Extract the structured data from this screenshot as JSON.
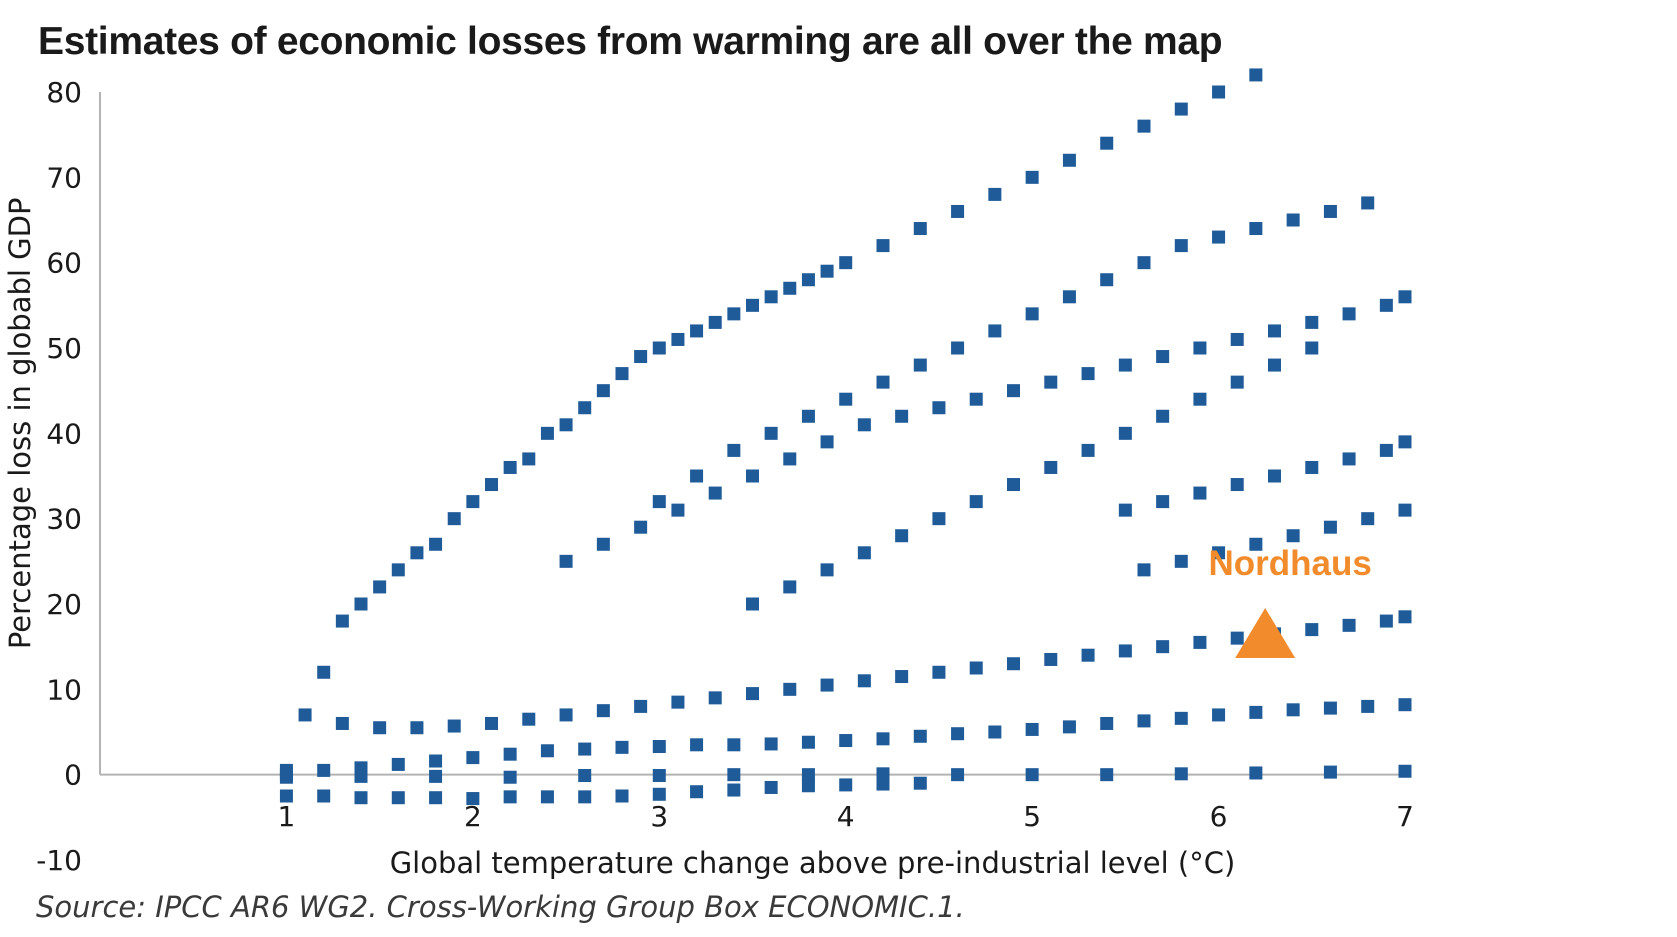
{
  "colors": {
    "series": "#1f5a99",
    "highlight": "#f28b2b",
    "axis": "#b3b3b3"
  },
  "chart_data": {
    "type": "scatter",
    "title": "Estimates of economic losses from warming are all over the map",
    "xlabel": "Global temperature change above pre-industrial level (°C)",
    "ylabel": "Percentage loss in globabl GDP",
    "xlim": [
      0,
      7
    ],
    "ylim": [
      -10,
      80
    ],
    "x_ticks": [
      "1",
      "2",
      "3",
      "4",
      "5",
      "6",
      "7"
    ],
    "y_ticks": [
      "80",
      "70",
      "60",
      "50",
      "40",
      "30",
      "20",
      "10",
      "0",
      "-10"
    ],
    "grid": false,
    "source": "Source: IPCC AR6 WG2. Cross-Working Group Box ECONOMIC.1.",
    "annotations": [
      {
        "label": "Nordhaus",
        "x": 6.25,
        "y": 16.6
      }
    ],
    "series": [
      {
        "marker": "square",
        "points": [
          [
            1.0,
            0
          ],
          [
            1.0,
            0.5
          ],
          [
            1.0,
            -0.3
          ],
          [
            1.4,
            -0.2
          ],
          [
            1.8,
            -0.2
          ],
          [
            2.2,
            -0.3
          ],
          [
            2.6,
            -0.1
          ],
          [
            3.0,
            -0.1
          ],
          [
            3.4,
            0
          ],
          [
            3.8,
            0
          ],
          [
            4.2,
            0.1
          ],
          [
            4.6,
            0
          ],
          [
            5.0,
            0
          ],
          [
            5.4,
            0
          ],
          [
            5.8,
            0.1
          ],
          [
            6.2,
            0.2
          ],
          [
            6.6,
            0.3
          ],
          [
            7.0,
            0.4
          ],
          [
            1.0,
            -2.5
          ],
          [
            1.2,
            -2.5
          ],
          [
            1.4,
            -2.7
          ],
          [
            1.6,
            -2.7
          ],
          [
            1.8,
            -2.7
          ],
          [
            2.0,
            -2.8
          ],
          [
            2.2,
            -2.6
          ],
          [
            2.4,
            -2.6
          ],
          [
            2.6,
            -2.6
          ],
          [
            2.8,
            -2.5
          ],
          [
            3.0,
            -2.3
          ],
          [
            3.2,
            -2.0
          ],
          [
            3.4,
            -1.8
          ],
          [
            3.6,
            -1.5
          ],
          [
            3.8,
            -1.3
          ],
          [
            4.0,
            -1.2
          ],
          [
            4.2,
            -1.1
          ],
          [
            4.4,
            -1.0
          ],
          [
            1.2,
            0.5
          ],
          [
            1.4,
            0.8
          ],
          [
            1.6,
            1.2
          ],
          [
            1.8,
            1.6
          ],
          [
            2.0,
            2.0
          ],
          [
            2.2,
            2.4
          ],
          [
            2.4,
            2.8
          ],
          [
            2.6,
            3.0
          ],
          [
            2.8,
            3.2
          ],
          [
            3.0,
            3.3
          ],
          [
            3.2,
            3.5
          ],
          [
            3.4,
            3.5
          ],
          [
            3.6,
            3.6
          ],
          [
            3.8,
            3.8
          ],
          [
            4.0,
            4.0
          ],
          [
            4.2,
            4.2
          ],
          [
            4.4,
            4.5
          ],
          [
            4.6,
            4.8
          ],
          [
            4.8,
            5.0
          ],
          [
            5.0,
            5.3
          ],
          [
            5.2,
            5.6
          ],
          [
            5.4,
            6.0
          ],
          [
            5.6,
            6.3
          ],
          [
            5.8,
            6.6
          ],
          [
            6.0,
            7.0
          ],
          [
            6.2,
            7.3
          ],
          [
            6.4,
            7.6
          ],
          [
            6.6,
            7.8
          ],
          [
            6.8,
            8.0
          ],
          [
            7.0,
            8.2
          ],
          [
            1.3,
            6
          ],
          [
            1.5,
            5.5
          ],
          [
            1.7,
            5.5
          ],
          [
            1.9,
            5.7
          ],
          [
            2.1,
            6
          ],
          [
            2.3,
            6.5
          ],
          [
            2.5,
            7
          ],
          [
            2.7,
            7.5
          ],
          [
            2.9,
            8
          ],
          [
            3.1,
            8.5
          ],
          [
            3.3,
            9
          ],
          [
            3.5,
            9.5
          ],
          [
            3.7,
            10
          ],
          [
            3.9,
            10.5
          ],
          [
            4.1,
            11
          ],
          [
            4.3,
            11.5
          ],
          [
            4.5,
            12
          ],
          [
            4.7,
            12.5
          ],
          [
            4.9,
            13
          ],
          [
            5.1,
            13.5
          ],
          [
            5.3,
            14
          ],
          [
            5.5,
            14.5
          ],
          [
            5.7,
            15
          ],
          [
            5.9,
            15.5
          ],
          [
            6.1,
            16
          ],
          [
            6.3,
            16.5
          ],
          [
            6.5,
            17
          ],
          [
            6.7,
            17.5
          ],
          [
            6.9,
            18
          ],
          [
            7.0,
            18.5
          ],
          [
            1.1,
            7
          ],
          [
            1.2,
            12
          ],
          [
            1.3,
            18
          ],
          [
            1.4,
            20
          ],
          [
            1.5,
            22
          ],
          [
            1.6,
            24
          ],
          [
            1.7,
            26
          ],
          [
            1.8,
            27
          ],
          [
            1.9,
            30
          ],
          [
            2.0,
            32
          ],
          [
            2.1,
            34
          ],
          [
            2.2,
            36
          ],
          [
            2.3,
            37
          ],
          [
            2.4,
            40
          ],
          [
            2.5,
            41
          ],
          [
            2.6,
            43
          ],
          [
            2.7,
            45
          ],
          [
            2.8,
            47
          ],
          [
            2.9,
            49
          ],
          [
            3.0,
            50
          ],
          [
            3.1,
            51
          ],
          [
            3.2,
            52
          ],
          [
            3.3,
            53
          ],
          [
            3.4,
            54
          ],
          [
            3.5,
            55
          ],
          [
            3.6,
            56
          ],
          [
            3.7,
            57
          ],
          [
            3.8,
            58
          ],
          [
            3.9,
            59
          ],
          [
            4.0,
            60
          ],
          [
            4.2,
            62
          ],
          [
            4.4,
            64
          ],
          [
            4.6,
            66
          ],
          [
            4.8,
            68
          ],
          [
            5.0,
            70
          ],
          [
            5.2,
            72
          ],
          [
            5.4,
            74
          ],
          [
            5.6,
            76
          ],
          [
            5.8,
            78
          ],
          [
            6.0,
            80
          ],
          [
            6.2,
            82
          ],
          [
            3.0,
            32
          ],
          [
            3.2,
            35
          ],
          [
            3.4,
            38
          ],
          [
            3.6,
            40
          ],
          [
            3.8,
            42
          ],
          [
            4.0,
            44
          ],
          [
            4.2,
            46
          ],
          [
            4.4,
            48
          ],
          [
            4.6,
            50
          ],
          [
            4.8,
            52
          ],
          [
            5.0,
            54
          ],
          [
            5.2,
            56
          ],
          [
            5.4,
            58
          ],
          [
            5.6,
            60
          ],
          [
            5.8,
            62
          ],
          [
            6.0,
            63
          ],
          [
            6.2,
            64
          ],
          [
            6.4,
            65
          ],
          [
            6.6,
            66
          ],
          [
            6.8,
            67
          ],
          [
            2.5,
            25
          ],
          [
            2.7,
            27
          ],
          [
            2.9,
            29
          ],
          [
            3.1,
            31
          ],
          [
            3.3,
            33
          ],
          [
            3.5,
            35
          ],
          [
            3.7,
            37
          ],
          [
            3.9,
            39
          ],
          [
            4.1,
            41
          ],
          [
            4.3,
            42
          ],
          [
            4.5,
            43
          ],
          [
            4.7,
            44
          ],
          [
            4.9,
            45
          ],
          [
            5.1,
            46
          ],
          [
            5.3,
            47
          ],
          [
            5.5,
            48
          ],
          [
            5.7,
            49
          ],
          [
            5.9,
            50
          ],
          [
            6.1,
            51
          ],
          [
            6.3,
            52
          ],
          [
            6.5,
            53
          ],
          [
            6.7,
            54
          ],
          [
            6.9,
            55
          ],
          [
            7.0,
            56
          ],
          [
            3.5,
            20
          ],
          [
            3.7,
            22
          ],
          [
            3.9,
            24
          ],
          [
            4.1,
            26
          ],
          [
            4.3,
            28
          ],
          [
            4.5,
            30
          ],
          [
            4.7,
            32
          ],
          [
            4.9,
            34
          ],
          [
            5.1,
            36
          ],
          [
            5.3,
            38
          ],
          [
            5.5,
            40
          ],
          [
            5.7,
            42
          ],
          [
            5.9,
            44
          ],
          [
            6.1,
            46
          ],
          [
            6.3,
            48
          ],
          [
            6.5,
            50
          ],
          [
            5.5,
            31
          ],
          [
            5.7,
            32
          ],
          [
            5.9,
            33
          ],
          [
            6.1,
            34
          ],
          [
            6.3,
            35
          ],
          [
            6.5,
            36
          ],
          [
            6.7,
            37
          ],
          [
            6.9,
            38
          ],
          [
            7.0,
            39
          ],
          [
            5.6,
            24
          ],
          [
            5.8,
            25
          ],
          [
            6.0,
            26
          ],
          [
            6.2,
            27
          ],
          [
            6.4,
            28
          ],
          [
            6.6,
            29
          ],
          [
            6.8,
            30
          ],
          [
            7.0,
            31
          ]
        ]
      }
    ]
  }
}
